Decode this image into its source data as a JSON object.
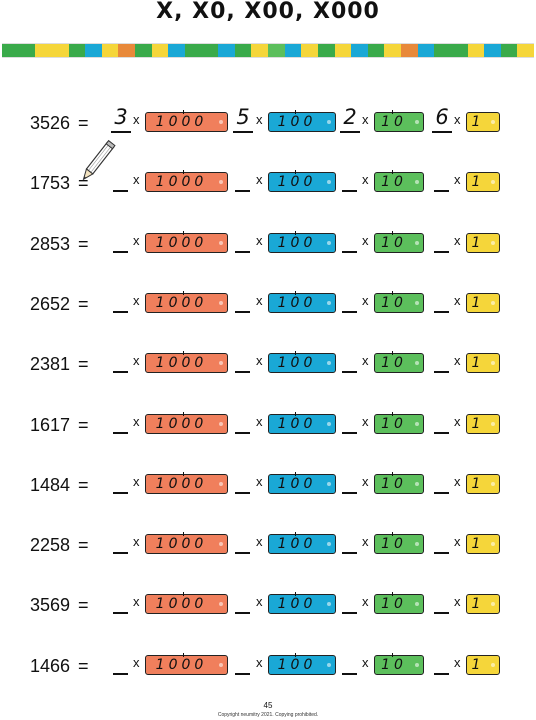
{
  "title": "X, X0, X00, X000",
  "colors": {
    "thousands": "#f07f5c",
    "hundreds": "#1aa8d6",
    "tens": "#5cbf5c",
    "ones": "#f5d63a",
    "stripe": [
      "#3aaa4a",
      "#3aaa4a",
      "#f5d63a",
      "#f5d63a",
      "#3aaa4a",
      "#1aa8d6",
      "#f5d63a",
      "#e8893a",
      "#3aaa4a",
      "#f5d63a",
      "#1aa8d6",
      "#3aaa4a",
      "#3aaa4a",
      "#1aa8d6",
      "#3aaa4a",
      "#f5d63a",
      "#5cbf5c",
      "#1aa8d6",
      "#f5d63a",
      "#3aaa4a",
      "#f5d63a",
      "#1aa8d6",
      "#3aaa4a",
      "#f5d63a",
      "#e8893a",
      "#1aa8d6",
      "#3aaa4a",
      "#3aaa4a",
      "#f5d63a",
      "#1aa8d6",
      "#3aaa4a",
      "#f5d63a"
    ]
  },
  "cards": {
    "thousands": "1000",
    "hundreds": "100",
    "tens": "10",
    "ones": "1"
  },
  "times": "x",
  "equals": "=",
  "rows": [
    {
      "number": "3526",
      "answers": [
        "3",
        "5",
        "2",
        "6"
      ]
    },
    {
      "number": "1753",
      "answers": [
        "",
        "",
        "",
        ""
      ]
    },
    {
      "number": "2853",
      "answers": [
        "",
        "",
        "",
        ""
      ]
    },
    {
      "number": "2652",
      "answers": [
        "",
        "",
        "",
        ""
      ]
    },
    {
      "number": "2381",
      "answers": [
        "",
        "",
        "",
        ""
      ]
    },
    {
      "number": "1617",
      "answers": [
        "",
        "",
        "",
        ""
      ]
    },
    {
      "number": "1484",
      "answers": [
        "",
        "",
        "",
        ""
      ]
    },
    {
      "number": "2258",
      "answers": [
        "",
        "",
        "",
        ""
      ]
    },
    {
      "number": "3569",
      "answers": [
        "",
        "",
        "",
        ""
      ]
    },
    {
      "number": "1466",
      "answers": [
        "",
        "",
        "",
        ""
      ]
    }
  ],
  "footer": {
    "page_number": "45",
    "copyright": "Copyright neumitry 2021. Copying prohibited."
  }
}
